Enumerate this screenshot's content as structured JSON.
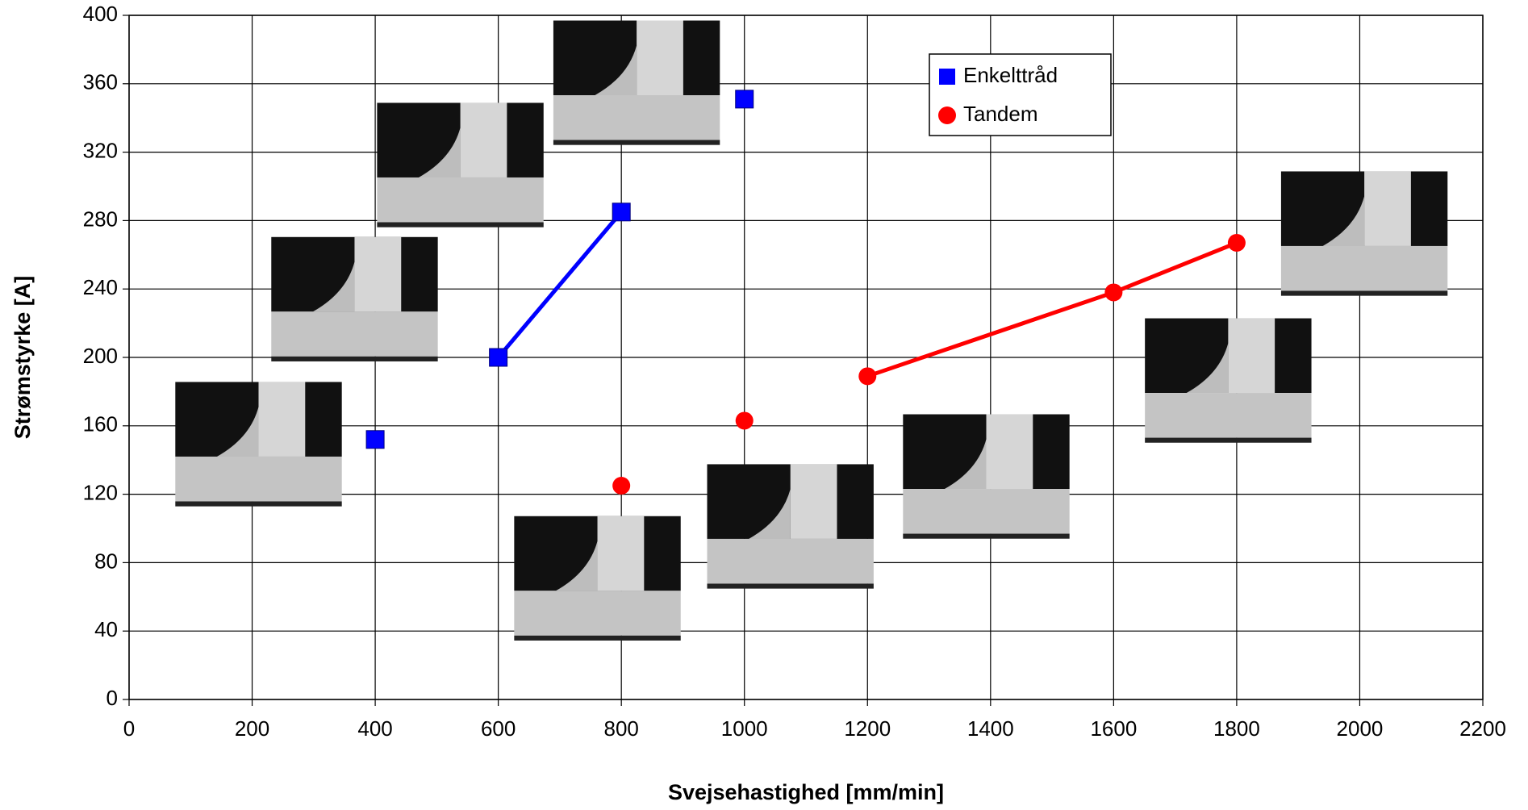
{
  "chart_data": {
    "type": "scatter",
    "xlabel": "Svejsehastighed [mm/min]",
    "ylabel": "Strømstyrke [A]",
    "xlim": [
      0,
      2200
    ],
    "xticks": [
      0,
      200,
      400,
      600,
      800,
      1000,
      1200,
      1400,
      1600,
      1800,
      2000,
      2200
    ],
    "ylim": [
      0,
      400
    ],
    "yticks": [
      0,
      40,
      80,
      120,
      160,
      200,
      240,
      280,
      320,
      360,
      400
    ],
    "grid": true,
    "legend": "upper center",
    "series": [
      {
        "name": "Enkelttråd",
        "color": "#0000ff",
        "marker": "square",
        "x": [
          400,
          null,
          600,
          800,
          null,
          1000
        ],
        "values": [
          152,
          null,
          200,
          285,
          null,
          351
        ]
      },
      {
        "name": "Tandem",
        "color": "#ff0000",
        "marker": "circle",
        "x": [
          800,
          null,
          1000,
          null,
          1200,
          1600,
          1800
        ],
        "values": [
          125,
          null,
          163,
          null,
          189,
          238,
          267
        ]
      }
    ]
  }
}
